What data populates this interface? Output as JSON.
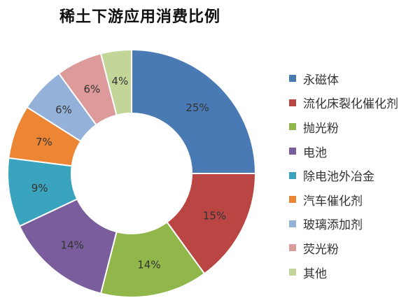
{
  "chart_data": {
    "type": "pie",
    "variant": "donut",
    "title": "稀土下游应用消费比例",
    "categories": [
      "永磁体",
      "流化床裂化催化剂",
      "抛光粉",
      "电池",
      "除电池外冶金",
      "汽车催化剂",
      "玻璃添加剂",
      "荧光粉",
      "其他"
    ],
    "values": [
      25,
      15,
      14,
      14,
      9,
      7,
      6,
      6,
      4
    ],
    "data_labels": [
      "25%",
      "15%",
      "14%",
      "14%",
      "9%",
      "7%",
      "6%",
      "6%",
      "4%"
    ],
    "colors": [
      "#4a7ab3",
      "#b94643",
      "#91b64a",
      "#7a5d9c",
      "#3aa3bd",
      "#ec8534",
      "#94b2d9",
      "#dc9a9a",
      "#c3d69a"
    ],
    "legend_position": "right"
  }
}
